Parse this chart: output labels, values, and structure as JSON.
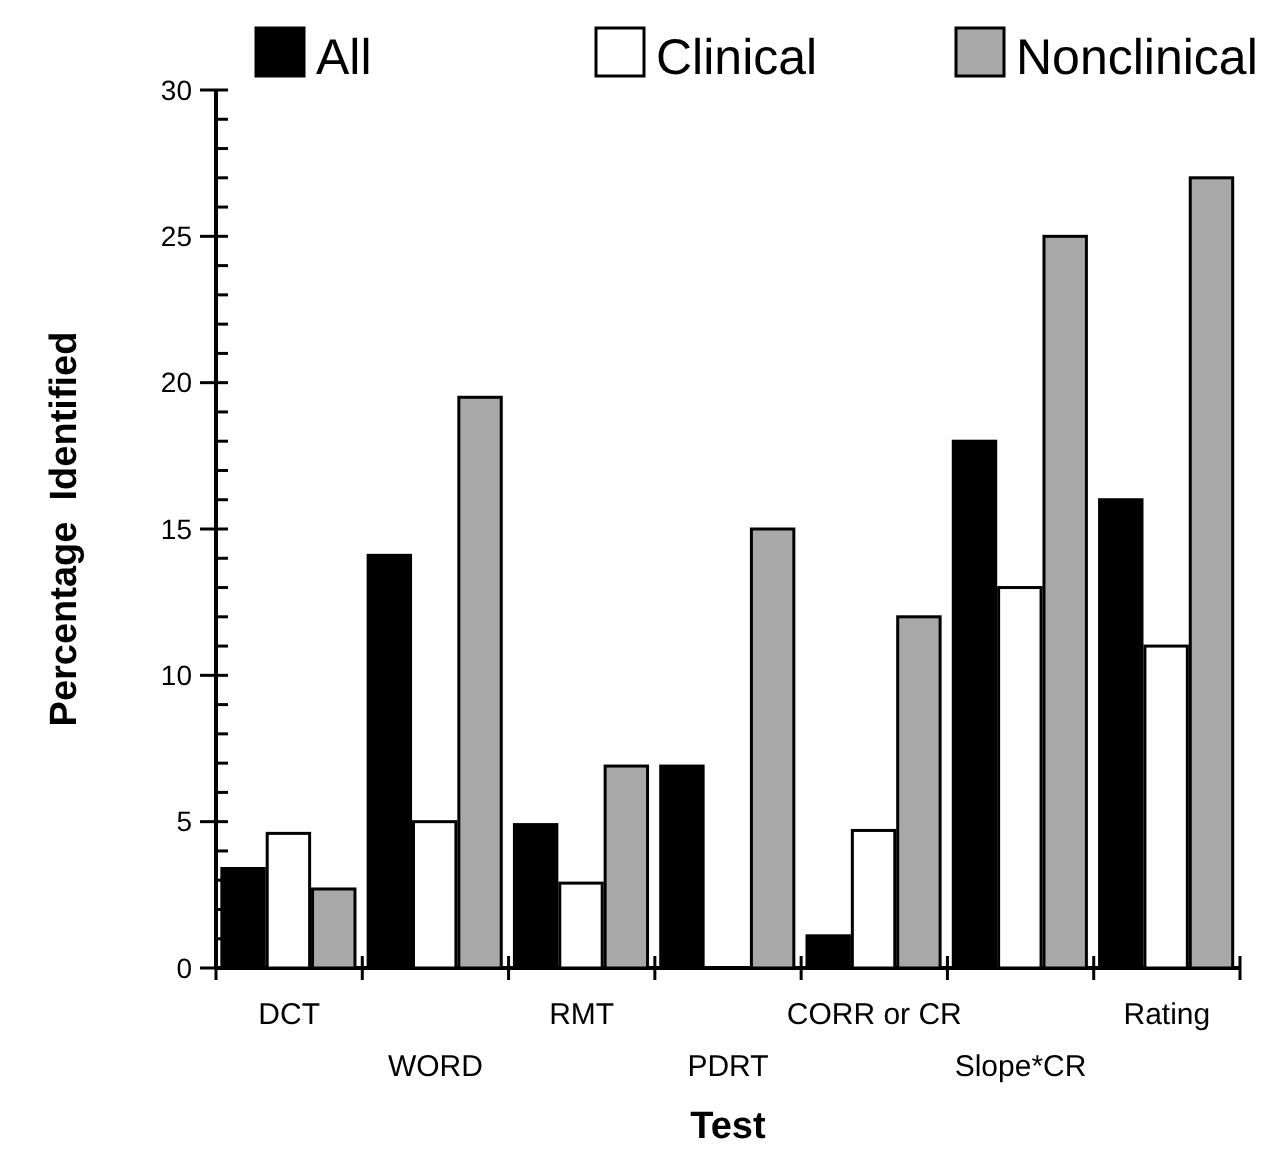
{
  "chart_data": {
    "type": "bar",
    "xlabel": "Test",
    "ylabel": "Percentage  Identified",
    "categories": [
      "DCT",
      "WORD",
      "RMT",
      "PDRT",
      "CORR or CR",
      "Slope*CR",
      "Rating"
    ],
    "series": [
      {
        "name": "All",
        "color": "#000000",
        "values": [
          3.4,
          14.1,
          4.9,
          6.9,
          1.1,
          18,
          16
        ]
      },
      {
        "name": "Clinical",
        "color": "#ffffff",
        "values": [
          4.6,
          5,
          2.9,
          0,
          4.7,
          13,
          11
        ]
      },
      {
        "name": "Nonclinical",
        "color": "#a8a8a8",
        "values": [
          2.7,
          19.5,
          6.9,
          15,
          12,
          25,
          27
        ]
      }
    ],
    "ylim": [
      0,
      30
    ],
    "yticks": [
      0,
      {
        "value": 1,
        "label": null
      },
      {
        "value": 2,
        "label": null
      },
      {
        "value": 3,
        "label": null
      },
      {
        "value": 4,
        "label": null
      },
      5,
      {
        "value": 6,
        "label": null
      },
      {
        "value": 7,
        "label": null
      },
      {
        "value": 8,
        "label": null
      },
      {
        "value": 9,
        "label": null
      },
      10,
      {
        "value": 11,
        "label": null
      },
      {
        "value": 12,
        "label": null
      },
      {
        "value": 13,
        "label": null
      },
      {
        "value": 14,
        "label": null
      },
      15,
      {
        "value": 16,
        "label": null
      },
      {
        "value": 17,
        "label": null
      },
      {
        "value": 18,
        "label": null
      },
      {
        "value": 19,
        "label": null
      },
      20,
      {
        "value": 21,
        "label": null
      },
      {
        "value": 22,
        "label": null
      },
      {
        "value": 23,
        "label": null
      },
      {
        "value": 24,
        "label": null
      },
      25,
      {
        "value": 26,
        "label": null
      },
      {
        "value": 27,
        "label": null
      },
      {
        "value": 28,
        "label": null
      },
      {
        "value": 29,
        "label": null
      },
      30
    ],
    "legend": "top",
    "grid": false
  }
}
